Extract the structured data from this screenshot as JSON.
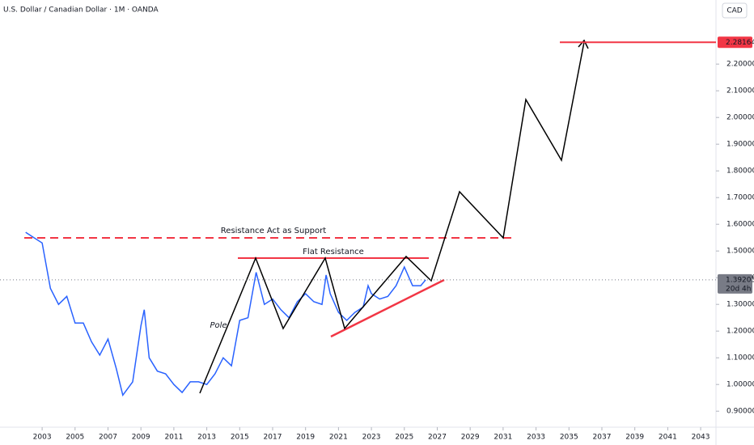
{
  "chart_data": {
    "type": "line",
    "title": "U.S. Dollar / Canadian Dollar · 1M · OANDA",
    "currency": "CAD",
    "x": [
      2002.0,
      2002.5,
      2003.0,
      2003.5,
      2004.0,
      2004.5,
      2005.0,
      2005.5,
      2006.0,
      2006.5,
      2007.0,
      2007.5,
      2007.9,
      2008.5,
      2009.0,
      2009.2,
      2009.5,
      2010.0,
      2010.5,
      2011.0,
      2011.5,
      2012.0,
      2012.5,
      2013.0,
      2013.5,
      2014.0,
      2014.5,
      2015.0,
      2015.5,
      2016.0,
      2016.5,
      2017.0,
      2017.5,
      2018.0,
      2018.5,
      2019.0,
      2019.5,
      2020.0,
      2020.25,
      2020.5,
      2021.0,
      2021.5,
      2022.0,
      2022.5,
      2022.8,
      2023.0,
      2023.5,
      2024.0,
      2024.5,
      2025.0,
      2025.5,
      2026.0,
      2026.3
    ],
    "series": [
      {
        "name": "USDCAD",
        "color": "#2962ff",
        "values": [
          1.57,
          1.55,
          1.53,
          1.36,
          1.3,
          1.33,
          1.23,
          1.23,
          1.16,
          1.11,
          1.17,
          1.06,
          0.96,
          1.01,
          1.22,
          1.28,
          1.1,
          1.05,
          1.04,
          1.0,
          0.97,
          1.01,
          1.01,
          1.0,
          1.04,
          1.1,
          1.07,
          1.24,
          1.25,
          1.42,
          1.3,
          1.32,
          1.28,
          1.25,
          1.31,
          1.34,
          1.31,
          1.3,
          1.41,
          1.34,
          1.27,
          1.24,
          1.27,
          1.29,
          1.37,
          1.34,
          1.32,
          1.33,
          1.37,
          1.44,
          1.37,
          1.37,
          1.39203
        ]
      }
    ],
    "xlim": [
      2000.44,
      2043.93
    ],
    "ylim": [
      0.84,
      2.44
    ],
    "xticks": [
      2003,
      2005,
      2007,
      2009,
      2011,
      2013,
      2015,
      2017,
      2019,
      2021,
      2023,
      2025,
      2027,
      2029,
      2031,
      2033,
      2035,
      2037,
      2039,
      2041,
      2043
    ],
    "yticks": [
      {
        "value": 0.9,
        "label": "0.90000"
      },
      {
        "value": 1.0,
        "label": "1.00000"
      },
      {
        "value": 1.1,
        "label": "1.10000"
      },
      {
        "value": 1.2,
        "label": "1.20000"
      },
      {
        "value": 1.3,
        "label": "1.30000"
      },
      {
        "value": 1.4,
        "label": "1.40000"
      },
      {
        "value": 1.5,
        "label": "1.50000"
      },
      {
        "value": 1.6,
        "label": "1.60000"
      },
      {
        "value": 1.7,
        "label": "1.70000"
      },
      {
        "value": 1.8,
        "label": "1.80000"
      },
      {
        "value": 1.9,
        "label": "1.90000"
      },
      {
        "value": 2.0,
        "label": "2.00000"
      },
      {
        "value": 2.1,
        "label": "2.10000"
      },
      {
        "value": 2.2,
        "label": "2.20000"
      }
    ],
    "current_price": 1.39203,
    "countdown": "20d 4h",
    "target_price": 2.28164,
    "annotations": {
      "support": "Resistance Act as Support",
      "flat": "Flat Resistance",
      "pole": "Pole"
    }
  }
}
